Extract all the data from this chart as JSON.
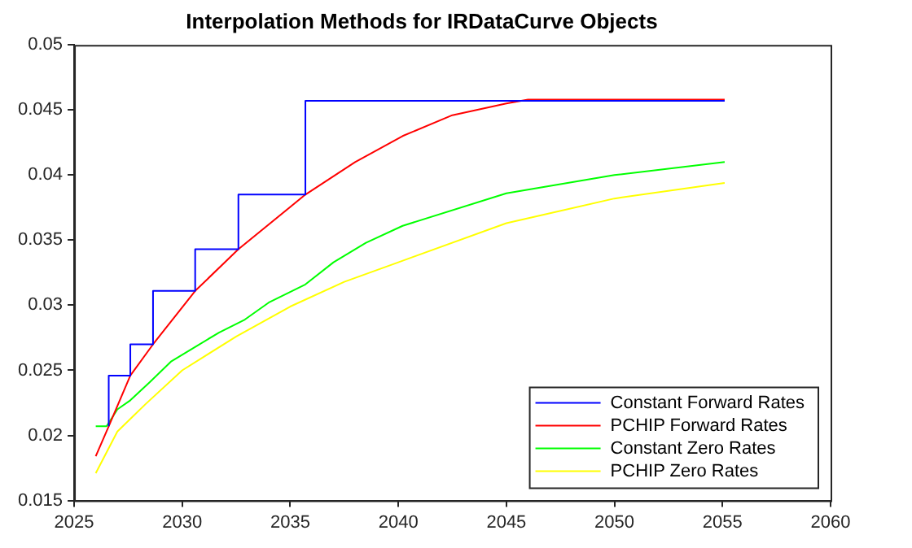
{
  "chart_data": {
    "type": "line",
    "title": "Interpolation Methods for IRDataCurve Objects",
    "xlim": [
      2025,
      2060
    ],
    "xticks": [
      2025,
      2030,
      2035,
      2040,
      2045,
      2050,
      2055,
      2060
    ],
    "ylim": [
      0.015,
      0.05
    ],
    "yticks": [
      0.015,
      0.02,
      0.025,
      0.03,
      0.035,
      0.04,
      0.045,
      0.05
    ],
    "grid": false,
    "legend": "bottom right",
    "marker": "none",
    "line_style": "solid",
    "series": [
      {
        "name": "Constant Forward Rates",
        "type": "step",
        "color": "#0000ff",
        "x": [
          2026.6,
          2026.6,
          2027.6,
          2028.65,
          2030.6,
          2032.6,
          2035.7,
          2055.1
        ],
        "values": [
          0.0207,
          0.0246,
          0.027,
          0.0311,
          0.0343,
          0.0385,
          0.0457,
          0.0457
        ]
      },
      {
        "name": "PCHIP Forward Rates",
        "color": "#ff0000",
        "x": [
          2026.0,
          2026.6,
          2027.6,
          2028.65,
          2030.6,
          2032.6,
          2035.7,
          2038,
          2040.2,
          2042.5,
          2045,
          2046,
          2050,
          2055.1
        ],
        "values": [
          0.0184,
          0.0207,
          0.0246,
          0.027,
          0.0311,
          0.0343,
          0.0385,
          0.041,
          0.043,
          0.0446,
          0.0455,
          0.0458,
          0.0458,
          0.0458
        ]
      },
      {
        "name": "Constant Zero Rates",
        "color": "#00ff00",
        "x": [
          2026.0,
          2026.5,
          2027,
          2027.6,
          2028.5,
          2029.5,
          2030.7,
          2031.7,
          2032.9,
          2034,
          2035.7,
          2037,
          2038.5,
          2040.2,
          2045,
          2050,
          2055.1
        ],
        "values": [
          0.0207,
          0.0207,
          0.022,
          0.0227,
          0.0241,
          0.0257,
          0.0269,
          0.0279,
          0.0289,
          0.0302,
          0.0316,
          0.0333,
          0.0348,
          0.0361,
          0.0386,
          0.04,
          0.041
        ]
      },
      {
        "name": "PCHIP Zero Rates",
        "color": "#ffff00",
        "x": [
          2026.0,
          2027,
          2028.3,
          2030,
          2032.5,
          2035,
          2037.5,
          2040,
          2045,
          2050,
          2055.1
        ],
        "values": [
          0.0171,
          0.0203,
          0.0224,
          0.025,
          0.0276,
          0.0299,
          0.0318,
          0.0333,
          0.0363,
          0.0382,
          0.0394
        ]
      }
    ]
  }
}
